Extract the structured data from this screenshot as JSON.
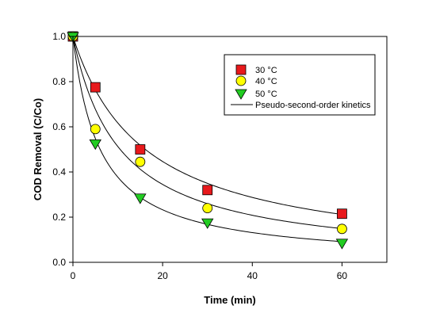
{
  "chart_data": {
    "type": "scatter",
    "xlabel": "Time (min)",
    "ylabel": "COD Removal (C/Co)",
    "xlim": [
      0,
      70
    ],
    "ylim": [
      0,
      1.0
    ],
    "xticks": [
      0,
      20,
      40,
      60
    ],
    "xtick_labels": [
      "0",
      "20",
      "40",
      "60"
    ],
    "yticks": [
      0.0,
      0.2,
      0.4,
      0.6,
      0.8,
      1.0
    ],
    "ytick_labels": [
      "0.0",
      "0.2",
      "0.4",
      "0.6",
      "0.8",
      "1.0"
    ],
    "legend_position": "top-right",
    "grid": false,
    "fit": {
      "name": "Pseudo-second-order kinetics",
      "color": "#000000"
    },
    "series": [
      {
        "name": "30 °C",
        "marker": "square",
        "color": "#e8191c",
        "x": [
          0,
          5,
          15,
          30,
          60
        ],
        "y": [
          1.0,
          0.775,
          0.5,
          0.32,
          0.215
        ],
        "fit_k": 0.062
      },
      {
        "name": "40 °C",
        "marker": "circle",
        "color": "#ffff00",
        "x": [
          0,
          5,
          15,
          30,
          60
        ],
        "y": [
          1.0,
          0.59,
          0.445,
          0.24,
          0.148
        ],
        "fit_k": 0.095
      },
      {
        "name": "50 °C",
        "marker": "triangle-down",
        "color": "#22cc22",
        "x": [
          0,
          5,
          15,
          30,
          60
        ],
        "y": [
          1.0,
          0.525,
          0.285,
          0.175,
          0.085
        ],
        "fit_k": 0.165
      }
    ]
  }
}
